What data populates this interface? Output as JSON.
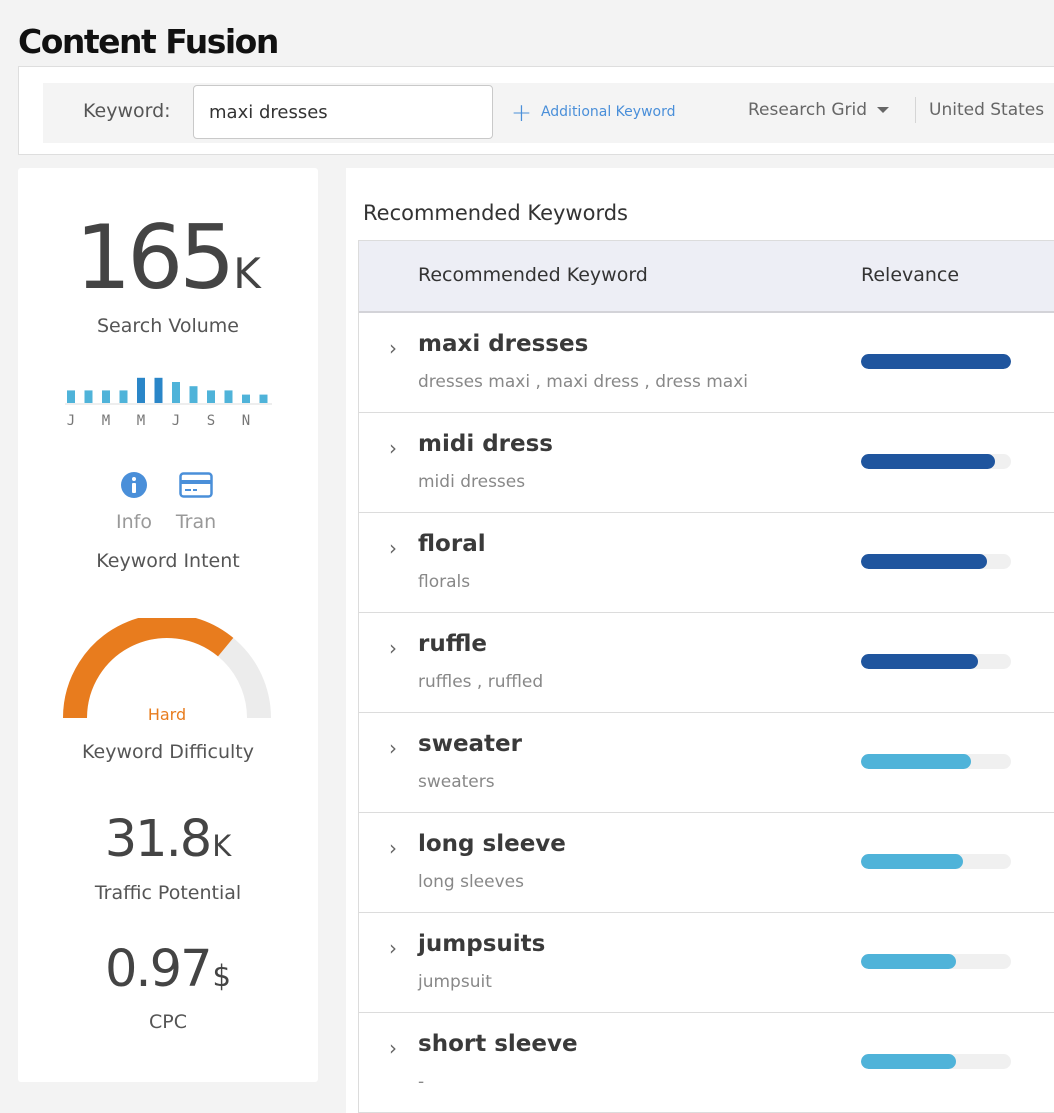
{
  "page_title": "Content Fusion",
  "search": {
    "label": "Keyword:",
    "value": "maxi dresses",
    "additional_keyword": "Additional Keyword",
    "research_mode": "Research Grid",
    "country": "United States"
  },
  "stats": {
    "search_volume": {
      "value": "165",
      "unit": "K",
      "label": "Search Volume"
    },
    "monthly_trend": {
      "months": [
        "J",
        "M",
        "M",
        "J",
        "S",
        "N"
      ],
      "values": [
        3,
        3,
        3,
        3,
        6,
        6,
        5,
        4,
        3,
        3,
        2,
        2
      ],
      "highlight": [
        4,
        5
      ],
      "color": "#4fb3d9",
      "highlight_color": "#2a86c8"
    },
    "intent": {
      "label": "Keyword Intent",
      "items": [
        {
          "icon": "info-icon",
          "label": "Info"
        },
        {
          "icon": "credit-card-icon",
          "label": "Tran"
        }
      ],
      "color": "#4a8fd9"
    },
    "difficulty": {
      "level": "Hard",
      "label": "Keyword Difficulty",
      "fraction": 0.72,
      "color": "#e87c1e"
    },
    "traffic_potential": {
      "value": "31.8",
      "unit": "K",
      "label": "Traffic Potential"
    },
    "cpc": {
      "value": "0.97",
      "unit": "$",
      "label": "CPC"
    }
  },
  "recommended": {
    "title": "Recommended Keywords",
    "col_keyword": "Recommended Keyword",
    "col_relevance": "Relevance",
    "dark_color": "#1f559e",
    "light_color": "#4fb3d9",
    "rows": [
      {
        "keyword": "maxi dresses",
        "synonyms": "dresses maxi , maxi dress , dress maxi",
        "relevance": 1.0,
        "tone": "dark"
      },
      {
        "keyword": "midi dress",
        "synonyms": "midi dresses",
        "relevance": 0.89,
        "tone": "dark"
      },
      {
        "keyword": "floral",
        "synonyms": "florals",
        "relevance": 0.84,
        "tone": "dark"
      },
      {
        "keyword": "ruffle",
        "synonyms": "ruffles , ruffled",
        "relevance": 0.78,
        "tone": "dark"
      },
      {
        "keyword": "sweater",
        "synonyms": "sweaters",
        "relevance": 0.73,
        "tone": "light"
      },
      {
        "keyword": "long sleeve",
        "synonyms": "long sleeves",
        "relevance": 0.68,
        "tone": "light"
      },
      {
        "keyword": "jumpsuits",
        "synonyms": "jumpsuit",
        "relevance": 0.63,
        "tone": "light"
      },
      {
        "keyword": "short sleeve",
        "synonyms": "-",
        "relevance": 0.63,
        "tone": "light"
      }
    ]
  }
}
